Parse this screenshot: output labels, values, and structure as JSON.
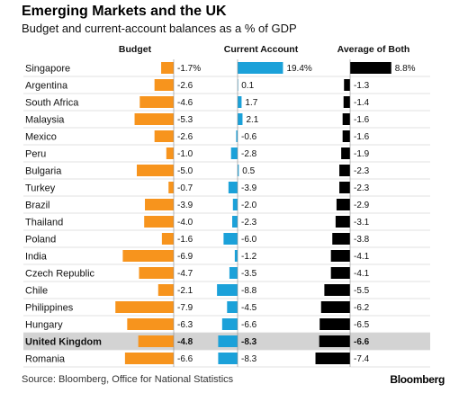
{
  "header": {
    "title": "Emerging Markets and the UK",
    "subtitle": "Budget and current-account balances as a % of GDP"
  },
  "footer": {
    "source": "Source: Bloomberg, Office for National Statistics",
    "brand": "Bloomberg"
  },
  "chart_data": {
    "type": "bar",
    "orientation": "horizontal",
    "grid": false,
    "legend": "none",
    "highlight_category": "United Kingdom",
    "categories": [
      "Singapore",
      "Argentina",
      "South Africa",
      "Malaysia",
      "Mexico",
      "Peru",
      "Bulgaria",
      "Turkey",
      "Brazil",
      "Thailand",
      "Poland",
      "India",
      "Czech Republic",
      "Chile",
      "Philippines",
      "Hungary",
      "United Kingdom",
      "Romania"
    ],
    "series": [
      {
        "name": "Budget",
        "color": "#f7941d",
        "values": [
          -1.7,
          -2.6,
          -4.6,
          -5.3,
          -2.6,
          -1.0,
          -5.0,
          -0.7,
          -3.9,
          -4.0,
          -1.6,
          -6.9,
          -4.7,
          -2.1,
          -7.9,
          -6.3,
          -4.8,
          -6.6
        ],
        "labels": [
          "-1.7%",
          "-2.6",
          "-4.6",
          "-5.3",
          "-2.6",
          "-1.0",
          "-5.0",
          "-0.7",
          "-3.9",
          "-4.0",
          "-1.6",
          "-6.9",
          "-4.7",
          "-2.1",
          "-7.9",
          "-6.3",
          "-4.8",
          "-6.6"
        ]
      },
      {
        "name": "Current Account",
        "color": "#1ba1d9",
        "values": [
          19.4,
          0.1,
          1.7,
          2.1,
          -0.6,
          -2.8,
          0.5,
          -3.9,
          -2.0,
          -2.3,
          -6.0,
          -1.2,
          -3.5,
          -8.8,
          -4.5,
          -6.6,
          -8.3,
          -8.3
        ],
        "labels": [
          "19.4%",
          "0.1",
          "1.7",
          "2.1",
          "-0.6",
          "-2.8",
          "0.5",
          "-3.9",
          "-2.0",
          "-2.3",
          "-6.0",
          "-1.2",
          "-3.5",
          "-8.8",
          "-4.5",
          "-6.6",
          "-8.3",
          "-8.3"
        ]
      },
      {
        "name": "Average of Both",
        "color": "#000000",
        "values": [
          8.8,
          -1.3,
          -1.4,
          -1.6,
          -1.6,
          -1.9,
          -2.3,
          -2.3,
          -2.9,
          -3.1,
          -3.8,
          -4.1,
          -4.1,
          -5.5,
          -6.2,
          -6.5,
          -6.6,
          -7.4
        ],
        "labels": [
          "8.8%",
          "-1.3",
          "-1.4",
          "-1.6",
          "-1.6",
          "-1.9",
          "-2.3",
          "-2.3",
          "-2.9",
          "-3.1",
          "-3.8",
          "-4.1",
          "-4.1",
          "-5.5",
          "-6.2",
          "-6.5",
          "-6.6",
          "-7.4"
        ]
      }
    ]
  }
}
